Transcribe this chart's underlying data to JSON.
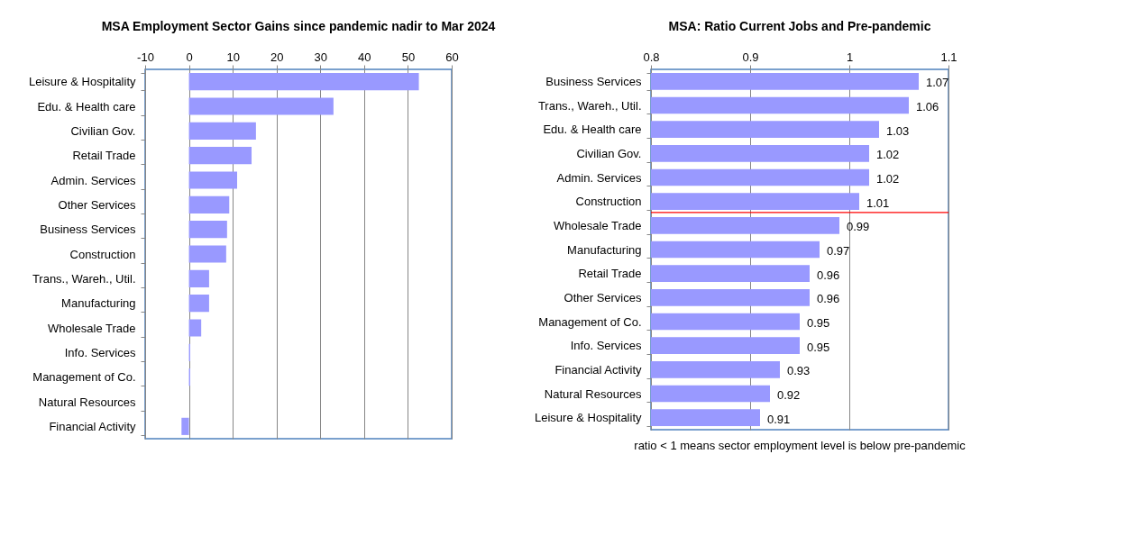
{
  "chart_data": [
    {
      "type": "bar",
      "orientation": "horizontal",
      "title": "MSA Employment Sector Gains since pandemic nadir to Mar 2024",
      "categories": [
        "Leisure & Hospitality",
        "Edu. & Health care",
        "Civilian Gov.",
        "Retail Trade",
        "Admin. Services",
        "Other Services",
        "Business Services",
        "Construction",
        "Trans., Wareh., Util.",
        "Manufacturing",
        "Wholesale Trade",
        "Info. Services",
        "Management of Co.",
        "Natural Resources",
        "Financial Activity"
      ],
      "values": [
        52.5,
        33.0,
        15.3,
        14.3,
        11.0,
        9.2,
        8.7,
        8.5,
        4.6,
        4.6,
        2.8,
        0.3,
        0.3,
        0,
        -1.7
      ],
      "color": "#9999ff",
      "xlim": [
        -10,
        60
      ],
      "xticks": [
        -10,
        0,
        10,
        20,
        30,
        40,
        50,
        60
      ],
      "grid": "x"
    },
    {
      "type": "bar",
      "orientation": "horizontal",
      "title": "MSA: Ratio Current Jobs and Pre-pandemic",
      "categories": [
        "Business Services",
        "Trans., Wareh., Util.",
        "Edu. & Health care",
        "Civilian Gov.",
        "Admin. Services",
        "Construction",
        "Wholesale Trade",
        "Manufacturing",
        "Retail Trade",
        "Other Services",
        "Management of Co.",
        "Info. Services",
        "Financial Activity",
        "Natural Resources",
        "Leisure & Hospitality"
      ],
      "values": [
        1.07,
        1.06,
        1.03,
        1.02,
        1.02,
        1.01,
        0.99,
        0.97,
        0.96,
        0.96,
        0.95,
        0.95,
        0.93,
        0.92,
        0.91
      ],
      "color": "#9999ff",
      "xlim": [
        0.8,
        1.1
      ],
      "xticks": [
        0.8,
        0.9,
        1,
        1.1
      ],
      "grid": "x",
      "data_labels": true,
      "ref_lines": [
        {
          "axis": "y",
          "value": "Construction",
          "color": "#ff0000"
        }
      ],
      "annotations": [
        "ratio < 1 means sector employment level is below pre-pandemic"
      ]
    }
  ]
}
